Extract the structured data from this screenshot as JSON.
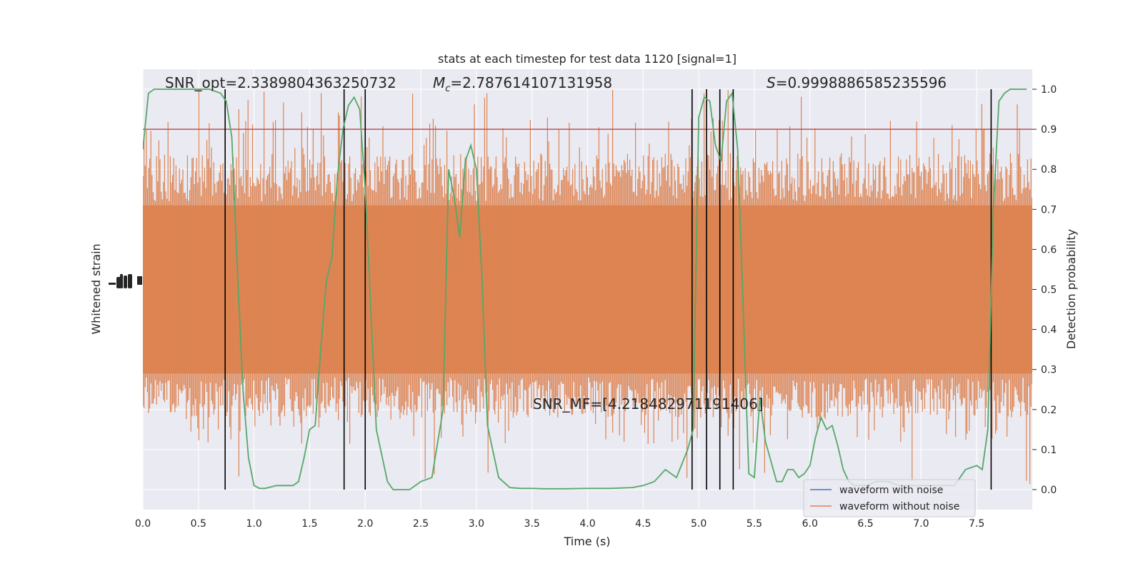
{
  "chart_data": {
    "type": "line",
    "title": "stats at each timestep for test data 1120 [signal=1]",
    "xlabel": "Time (s)",
    "ylabel_left": "Whitened strain",
    "ylabel_right": "Detection probability",
    "xlim": [
      0,
      8
    ],
    "ylim_right": [
      -0.05,
      1.05
    ],
    "x_ticks": [
      "0.0",
      "0.5",
      "1.0",
      "1.5",
      "2.0",
      "2.5",
      "3.0",
      "3.5",
      "4.0",
      "4.5",
      "5.0",
      "5.5",
      "6.0",
      "6.5",
      "7.0",
      "7.5"
    ],
    "y_ticks_right": [
      "0.0",
      "0.1",
      "0.2",
      "0.3",
      "0.4",
      "0.5",
      "0.6",
      "0.7",
      "0.8",
      "0.9",
      "1.0"
    ],
    "grid": true,
    "legend_position": "lower-right",
    "annotations": {
      "snr_opt": "SNR_opt=2.3389804363250732",
      "mc_prefix": "M",
      "mc_sub": "c",
      "mc_value": "=2.787614107131958",
      "s_prefix": "S",
      "s_value": "=0.9998886585235596",
      "snr_mf": "SNR_MF=[4.218482971191406]"
    },
    "threshold": {
      "value": 0.9,
      "color": "#c44e52"
    },
    "vertical_lines": [
      0.74,
      1.81,
      2.0,
      4.94,
      5.07,
      5.19,
      5.31,
      7.63
    ],
    "series": [
      {
        "name": "waveform with noise",
        "color": "#4c72b0"
      },
      {
        "name": "waveform without noise",
        "color": "#dd8452"
      },
      {
        "color": "#55a868",
        "x": [
          0.0,
          0.05,
          0.1,
          0.2,
          0.3,
          0.4,
          0.5,
          0.6,
          0.7,
          0.75,
          0.8,
          0.85,
          0.9,
          0.95,
          1.0,
          1.05,
          1.1,
          1.2,
          1.3,
          1.35,
          1.4,
          1.45,
          1.5,
          1.55,
          1.6,
          1.65,
          1.7,
          1.75,
          1.8,
          1.85,
          1.9,
          1.95,
          2.0,
          2.1,
          2.2,
          2.25,
          2.3,
          2.4,
          2.5,
          2.6,
          2.7,
          2.75,
          2.8,
          2.85,
          2.9,
          2.95,
          3.0,
          3.05,
          3.1,
          3.2,
          3.3,
          3.4,
          3.5,
          3.6,
          3.7,
          3.8,
          4.0,
          4.2,
          4.4,
          4.5,
          4.6,
          4.7,
          4.8,
          4.9,
          4.95,
          5.0,
          5.05,
          5.1,
          5.15,
          5.2,
          5.25,
          5.3,
          5.35,
          5.4,
          5.45,
          5.5,
          5.55,
          5.6,
          5.7,
          5.75,
          5.8,
          5.85,
          5.9,
          5.95,
          6.0,
          6.05,
          6.1,
          6.15,
          6.2,
          6.25,
          6.3,
          6.35,
          6.4,
          6.5,
          6.6,
          6.7,
          6.8,
          6.9,
          7.0,
          7.1,
          7.2,
          7.3,
          7.4,
          7.5,
          7.55,
          7.6,
          7.65,
          7.7,
          7.75,
          7.8,
          7.9,
          7.95
        ],
        "y": [
          0.85,
          0.99,
          1.0,
          1.0,
          1.0,
          1.0,
          1.0,
          1.0,
          0.99,
          0.97,
          0.88,
          0.55,
          0.25,
          0.08,
          0.01,
          0.003,
          0.003,
          0.01,
          0.01,
          0.01,
          0.02,
          0.08,
          0.15,
          0.16,
          0.35,
          0.52,
          0.58,
          0.78,
          0.9,
          0.96,
          0.98,
          0.95,
          0.75,
          0.15,
          0.02,
          0.0,
          0.0,
          0.0,
          0.02,
          0.03,
          0.2,
          0.8,
          0.73,
          0.63,
          0.82,
          0.86,
          0.8,
          0.53,
          0.16,
          0.03,
          0.005,
          0.003,
          0.003,
          0.002,
          0.002,
          0.002,
          0.003,
          0.003,
          0.005,
          0.01,
          0.02,
          0.05,
          0.03,
          0.1,
          0.15,
          0.93,
          0.98,
          0.97,
          0.86,
          0.82,
          0.97,
          0.99,
          0.85,
          0.45,
          0.04,
          0.03,
          0.23,
          0.12,
          0.02,
          0.02,
          0.05,
          0.05,
          0.03,
          0.04,
          0.06,
          0.13,
          0.18,
          0.15,
          0.16,
          0.11,
          0.05,
          0.02,
          0.01,
          0.01,
          0.02,
          0.02,
          0.01,
          0.01,
          0.01,
          0.01,
          0.01,
          0.01,
          0.05,
          0.06,
          0.05,
          0.15,
          0.7,
          0.97,
          0.99,
          1.0,
          1.0,
          1.0
        ]
      }
    ]
  }
}
